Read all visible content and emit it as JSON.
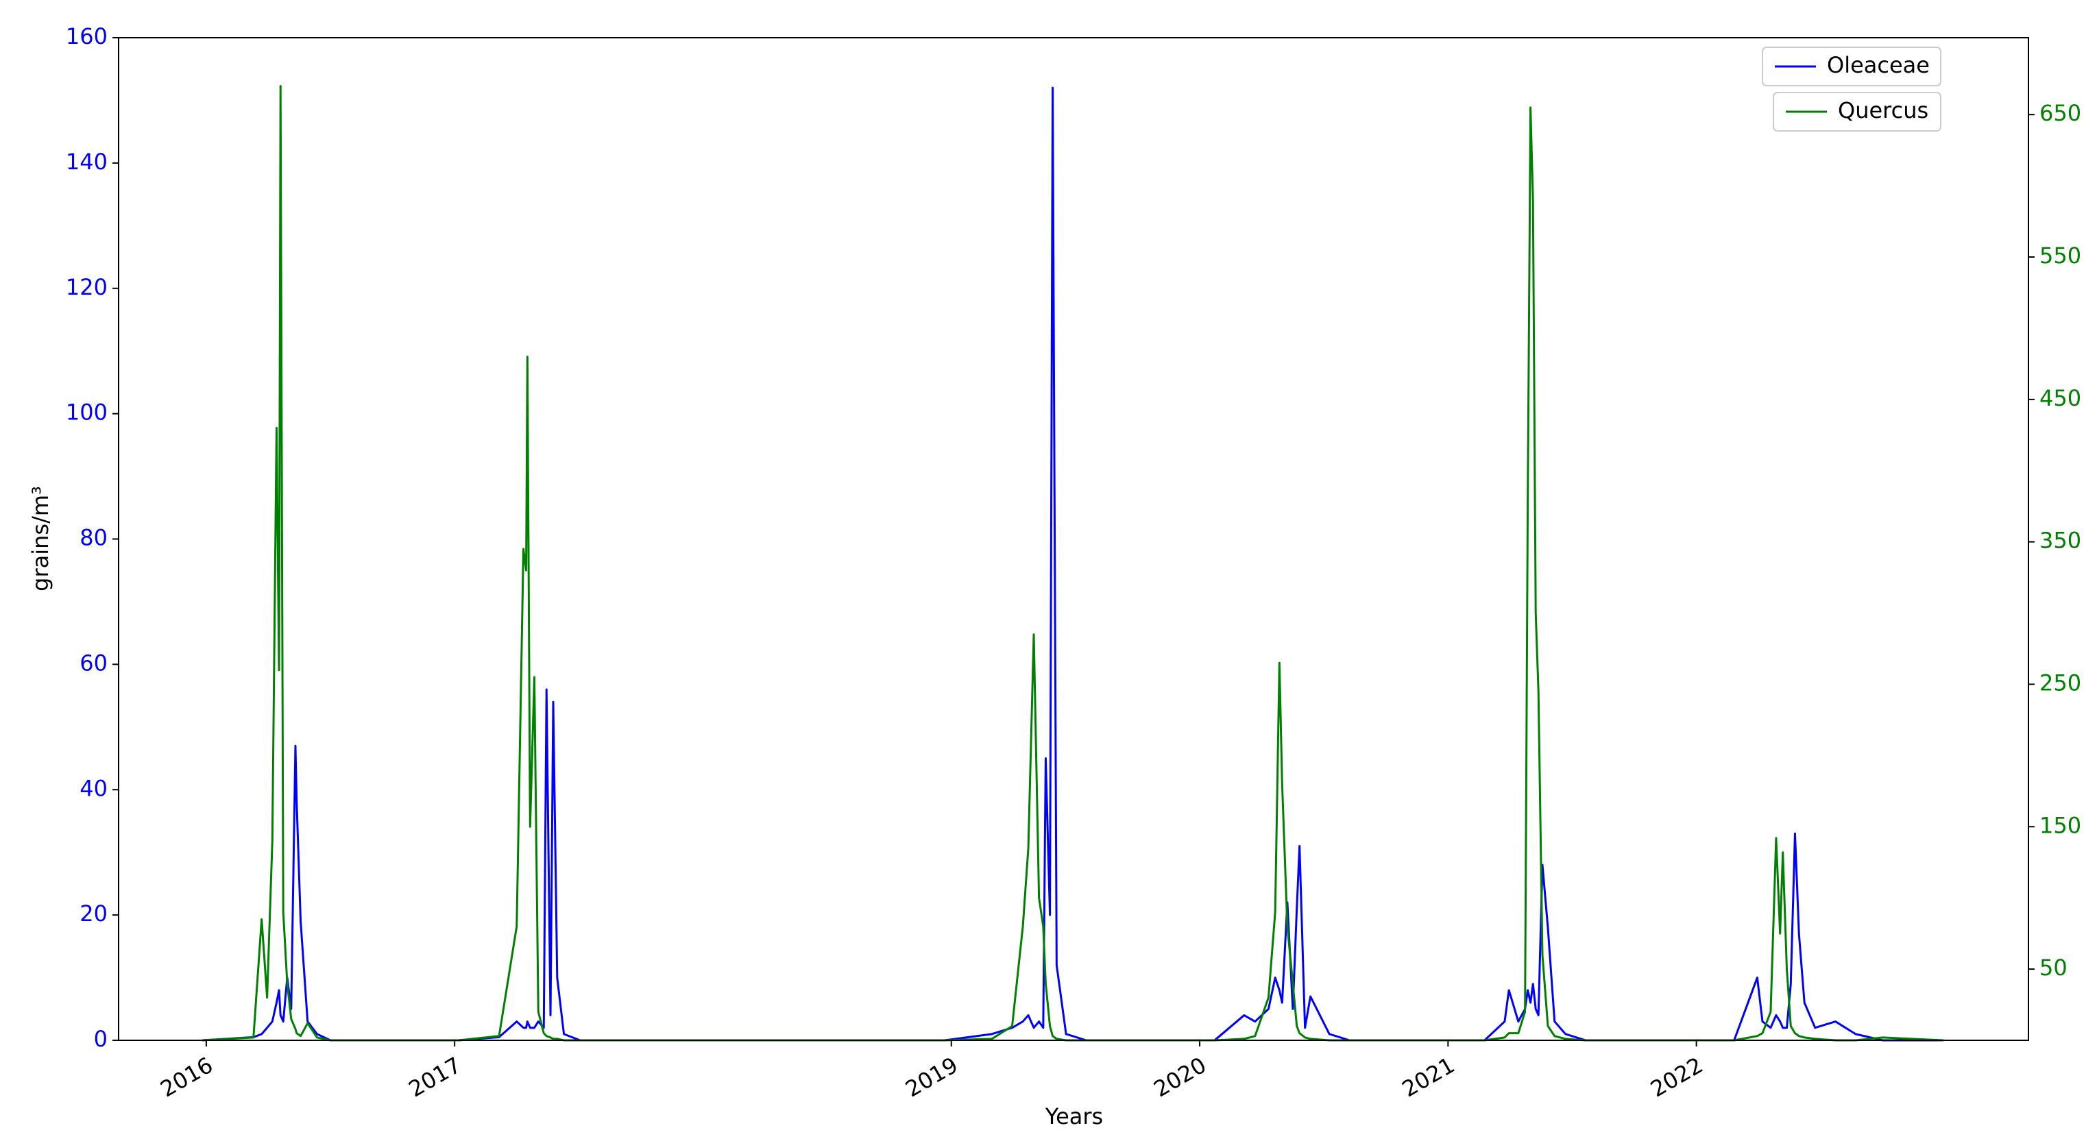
{
  "chart_data": {
    "type": "line",
    "x_label": "Years",
    "y_label": "grains/m³",
    "x": [
      2015.984,
      2016.19,
      2016.223,
      2016.245,
      2016.266,
      2016.283,
      2016.293,
      2016.299,
      2016.31,
      2016.326,
      2016.342,
      2016.359,
      2016.364,
      2016.38,
      2016.408,
      2016.446,
      2016.5,
      2017.016,
      2017.179,
      2017.25,
      2017.277,
      2017.288,
      2017.293,
      2017.304,
      2017.321,
      2017.337,
      2017.359,
      2017.37,
      2017.386,
      2017.397,
      2017.413,
      2017.44,
      2017.505,
      2018.973,
      2019.163,
      2019.245,
      2019.288,
      2019.31,
      2019.332,
      2019.353,
      2019.37,
      2019.38,
      2019.397,
      2019.408,
      2019.424,
      2019.462,
      2019.543,
      2020.06,
      2020.179,
      2020.223,
      2020.277,
      2020.304,
      2020.321,
      2020.332,
      2020.353,
      2020.375,
      2020.391,
      2020.402,
      2020.424,
      2020.446,
      2020.522,
      2020.603,
      2021.147,
      2021.228,
      2021.245,
      2021.283,
      2021.31,
      2021.321,
      2021.332,
      2021.342,
      2021.353,
      2021.364,
      2021.38,
      2021.402,
      2021.429,
      2021.473,
      2021.554,
      2022.152,
      2022.245,
      2022.266,
      2022.299,
      2022.321,
      2022.337,
      2022.348,
      2022.364,
      2022.38,
      2022.397,
      2022.413,
      2022.435,
      2022.478,
      2022.56,
      2022.641,
      2022.75,
      2022.995
    ],
    "series": [
      {
        "name": "Oleaceae",
        "color": "#0000ff",
        "axis": "y",
        "values": [
          0,
          0.5,
          1,
          2,
          3,
          6,
          8,
          4,
          3,
          10,
          5,
          47,
          38,
          19,
          3,
          1,
          0,
          0,
          0.5,
          3,
          2,
          2,
          3,
          2,
          2,
          3,
          2,
          56,
          4,
          54,
          10,
          1,
          0,
          0,
          1,
          2,
          3,
          4,
          2,
          3,
          2,
          45,
          20,
          152,
          12,
          1,
          0,
          0,
          4,
          3,
          5,
          10,
          8,
          6,
          22,
          5,
          21,
          31,
          2,
          7,
          1,
          0,
          0,
          3,
          8,
          3,
          5,
          8,
          6,
          9,
          5,
          4,
          28,
          18,
          3,
          1,
          0,
          0,
          10,
          3,
          2,
          4,
          3,
          2,
          2,
          9,
          33,
          17,
          6,
          2,
          3,
          1,
          0,
          0
        ]
      },
      {
        "name": "Quercus",
        "color": "#008000",
        "axis": "y2",
        "values": [
          0,
          2,
          85,
          30,
          140,
          430,
          260,
          670,
          90,
          40,
          15,
          8,
          5,
          3,
          12,
          2,
          0,
          0,
          3,
          80,
          345,
          330,
          480,
          150,
          255,
          20,
          5,
          3,
          2,
          1,
          1,
          0,
          0,
          0,
          1,
          10,
          80,
          135,
          285,
          100,
          80,
          40,
          10,
          3,
          1,
          0,
          0,
          0,
          1,
          3,
          30,
          90,
          265,
          180,
          80,
          40,
          10,
          5,
          2,
          1,
          0,
          0,
          0,
          2,
          5,
          5,
          20,
          380,
          655,
          590,
          300,
          245,
          60,
          10,
          3,
          1,
          0,
          0,
          3,
          5,
          20,
          142,
          75,
          132,
          50,
          10,
          5,
          3,
          2,
          1,
          0,
          0,
          2,
          0
        ]
      }
    ],
    "xlim": [
      2015.647,
      2023.337
    ],
    "xticks": [
      2016,
      2017,
      2019,
      2020,
      2021,
      2022
    ],
    "ylim": [
      0,
      160
    ],
    "yticks": [
      0,
      20,
      40,
      60,
      80,
      100,
      120,
      140,
      160
    ],
    "y2lim": [
      0,
      704
    ],
    "y2ticks": [
      50,
      150,
      250,
      350,
      450,
      550,
      650
    ],
    "grid": false,
    "legend": "upper right"
  }
}
